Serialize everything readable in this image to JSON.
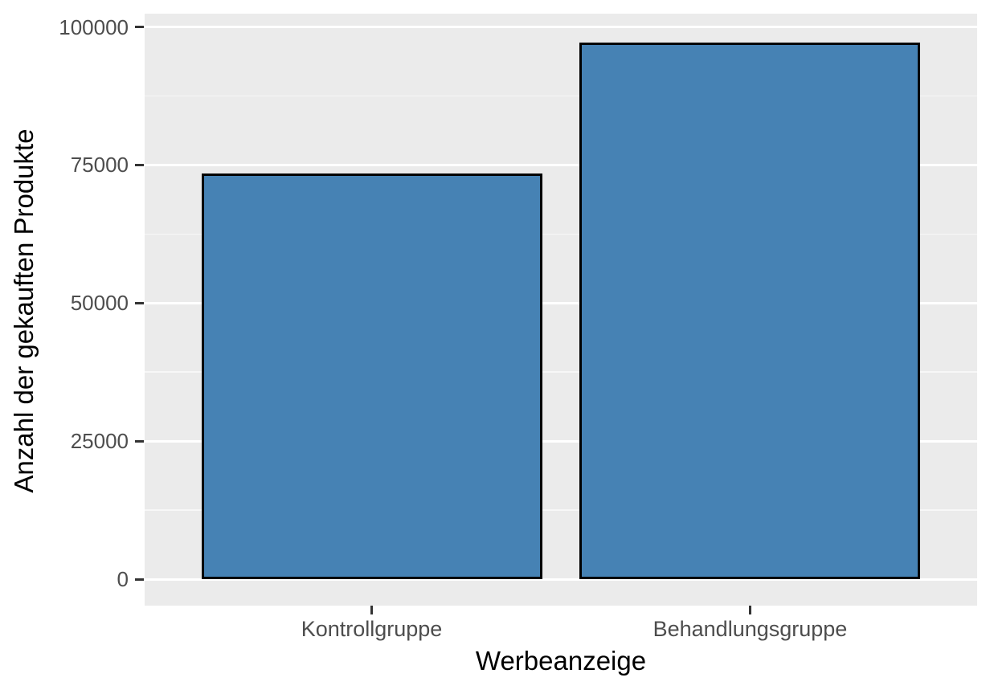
{
  "chart_data": {
    "type": "bar",
    "categories": [
      "Kontrollgruppe",
      "Behandlungsgruppe"
    ],
    "values": [
      73500,
      97200
    ],
    "title": "",
    "xlabel": "Werbeanzeige",
    "ylabel": "Anzahl der gekauften Produkte",
    "ylim": [
      0,
      100000
    ],
    "yticks": [
      0,
      25000,
      50000,
      75000,
      100000
    ],
    "ytick_labels": [
      "0",
      "25000",
      "50000",
      "75000",
      "100000"
    ],
    "minor_ticks": [
      12500,
      37500,
      62500,
      87500
    ],
    "legend_position": "none",
    "grid": true,
    "style": "ggplot-gray",
    "colors": {
      "bar_fill": "#4682B4",
      "bar_border": "#000000",
      "panel_background": "#EBEBEB",
      "grid_major": "#FFFFFF",
      "grid_minor": "#F7F7F7",
      "tick_label": "#4D4D4D",
      "axis_title": "#000000",
      "figure_background": "#FFFFFF"
    }
  }
}
